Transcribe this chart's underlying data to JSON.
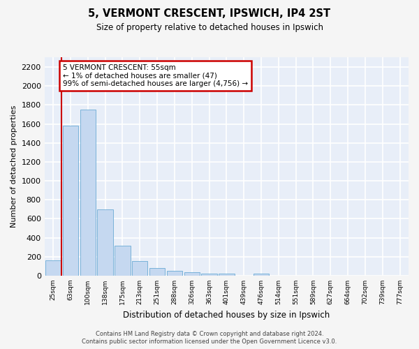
{
  "title": "5, VERMONT CRESCENT, IPSWICH, IP4 2ST",
  "subtitle": "Size of property relative to detached houses in Ipswich",
  "xlabel": "Distribution of detached houses by size in Ipswich",
  "ylabel": "Number of detached properties",
  "bar_color": "#c5d8f0",
  "bar_edge_color": "#6aaad4",
  "background_color": "#e8eef8",
  "grid_color": "#ffffff",
  "categories": [
    "25sqm",
    "63sqm",
    "100sqm",
    "138sqm",
    "175sqm",
    "213sqm",
    "251sqm",
    "288sqm",
    "326sqm",
    "363sqm",
    "401sqm",
    "439sqm",
    "476sqm",
    "514sqm",
    "551sqm",
    "589sqm",
    "627sqm",
    "664sqm",
    "702sqm",
    "739sqm",
    "777sqm"
  ],
  "values": [
    160,
    1580,
    1750,
    700,
    315,
    155,
    80,
    50,
    35,
    25,
    20,
    0,
    18,
    0,
    0,
    0,
    0,
    0,
    0,
    0,
    0
  ],
  "ylim": [
    0,
    2300
  ],
  "yticks": [
    0,
    200,
    400,
    600,
    800,
    1000,
    1200,
    1400,
    1600,
    1800,
    2000,
    2200
  ],
  "vline_x": 0.5,
  "annotation_text": "5 VERMONT CRESCENT: 55sqm\n← 1% of detached houses are smaller (47)\n99% of semi-detached houses are larger (4,756) →",
  "annotation_box_color": "#ffffff",
  "annotation_box_edge": "#cc0000",
  "footer_line1": "Contains HM Land Registry data © Crown copyright and database right 2024.",
  "footer_line2": "Contains public sector information licensed under the Open Government Licence v3.0."
}
